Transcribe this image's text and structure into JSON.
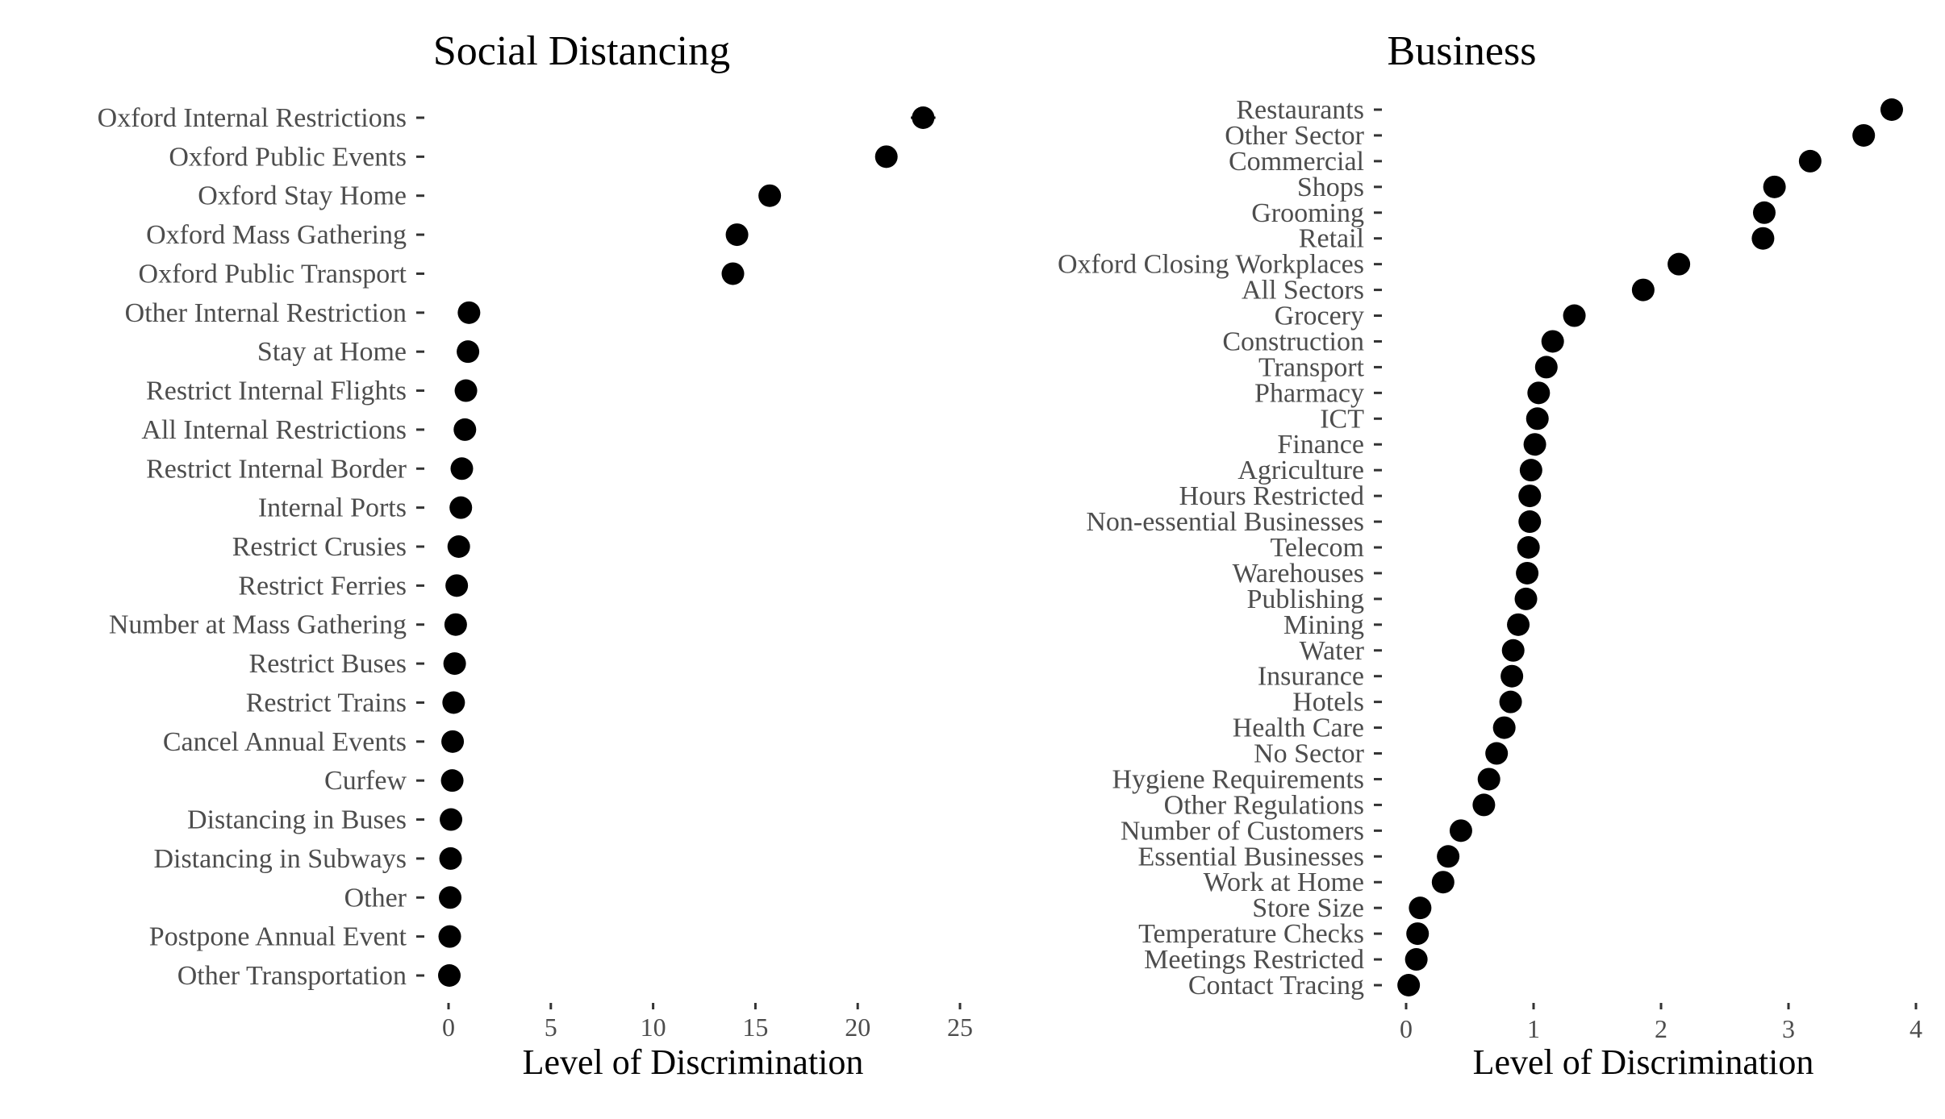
{
  "chart_data": [
    {
      "type": "scatter",
      "title": "Social Distancing",
      "xlabel": "Level of Discrimination",
      "ylabel": "",
      "xlim": [
        0,
        25
      ],
      "xticks": [
        "0",
        "5",
        "10",
        "15",
        "20",
        "25"
      ],
      "grid": false,
      "categories": [
        "Oxford Internal Restrictions",
        "Oxford Public Events",
        "Oxford Stay Home",
        "Oxford Mass Gathering",
        "Oxford Public Transport",
        "Other Internal Restriction",
        "Stay at Home",
        "Restrict Internal Flights",
        "All Internal Restrictions",
        "Restrict Internal Border",
        "Internal Ports",
        "Restrict Crusies",
        "Restrict Ferries",
        "Number at Mass Gathering",
        "Restrict Buses",
        "Restrict Trains",
        "Cancel Annual Events",
        "Curfew",
        "Distancing in Buses",
        "Distancing in Subways",
        "Other",
        "Postpone Annual Event",
        "Other Transportation"
      ],
      "values": [
        23.2,
        21.4,
        15.7,
        14.1,
        13.9,
        1.0,
        0.95,
        0.85,
        0.8,
        0.65,
        0.6,
        0.5,
        0.4,
        0.35,
        0.3,
        0.25,
        0.2,
        0.18,
        0.12,
        0.1,
        0.08,
        0.06,
        0.04
      ],
      "errors": [
        0.6,
        0,
        0,
        0,
        0,
        0,
        0,
        0,
        0,
        0,
        0,
        0,
        0,
        0,
        0,
        0,
        0,
        0,
        0,
        0,
        0,
        0,
        0
      ]
    },
    {
      "type": "scatter",
      "title": "Business",
      "xlabel": "Level of Discrimination",
      "ylabel": "",
      "xlim": [
        0,
        4
      ],
      "xticks": [
        "0",
        "1",
        "2",
        "3",
        "4"
      ],
      "grid": false,
      "categories": [
        "Restaurants",
        "Other Sector",
        "Commercial",
        "Shops",
        "Grooming",
        "Retail",
        "Oxford Closing Workplaces",
        "All Sectors",
        "Grocery",
        "Construction",
        "Transport",
        "Pharmacy",
        "ICT",
        "Finance",
        "Agriculture",
        "Hours Restricted",
        "Non-essential Businesses",
        "Telecom",
        "Warehouses",
        "Publishing",
        "Mining",
        "Water",
        "Insurance",
        "Hotels",
        "Health Care",
        "No Sector",
        "Hygiene Requirements",
        "Other Regulations",
        "Number of Customers",
        "Essential Businesses",
        "Work at Home",
        "Store Size",
        "Temperature Checks",
        "Meetings Restricted",
        "Contact Tracing"
      ],
      "values": [
        3.81,
        3.59,
        3.17,
        2.89,
        2.81,
        2.8,
        2.14,
        1.86,
        1.32,
        1.15,
        1.1,
        1.04,
        1.03,
        1.01,
        0.98,
        0.97,
        0.97,
        0.96,
        0.95,
        0.94,
        0.88,
        0.84,
        0.83,
        0.82,
        0.77,
        0.71,
        0.65,
        0.61,
        0.43,
        0.33,
        0.29,
        0.11,
        0.09,
        0.08,
        0.02
      ],
      "errors": [
        0,
        0,
        0,
        0,
        0,
        0,
        0,
        0,
        0,
        0,
        0,
        0,
        0,
        0,
        0,
        0,
        0,
        0,
        0,
        0,
        0,
        0,
        0,
        0,
        0,
        0,
        0,
        0,
        0,
        0,
        0,
        0,
        0,
        0,
        0
      ]
    }
  ]
}
